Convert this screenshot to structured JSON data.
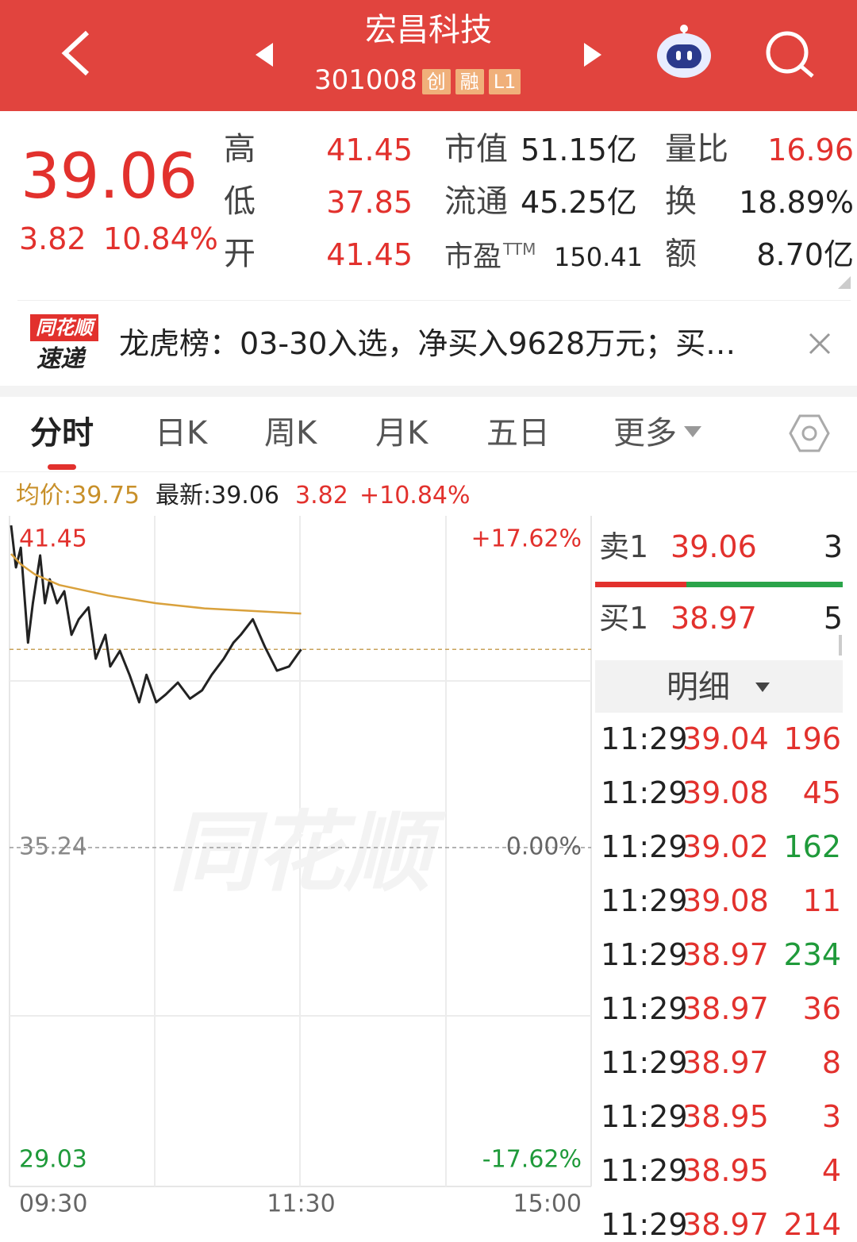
{
  "header": {
    "title": "宏昌科技",
    "code": "301008",
    "badges": [
      "创",
      "融",
      "L1"
    ]
  },
  "quote": {
    "price": "39.06",
    "change": "3.82",
    "change_pct": "10.84%",
    "stats": [
      [
        {
          "label": "高",
          "value": "41.45",
          "color": "#e2312d"
        },
        {
          "label": "市值",
          "value": "51.15亿",
          "color": "#222222"
        },
        {
          "label": "量比",
          "value": "16.96",
          "color": "#e2312d"
        }
      ],
      [
        {
          "label": "低",
          "value": "37.85",
          "color": "#e2312d"
        },
        {
          "label": "流通",
          "value": "45.25亿",
          "color": "#222222"
        },
        {
          "label": "换",
          "value": "18.89%",
          "color": "#222222"
        }
      ],
      [
        {
          "label": "开",
          "value": "41.45",
          "color": "#e2312d"
        },
        {
          "label": "市盈",
          "label_sup": "TTM",
          "value": "150.41",
          "color": "#222222"
        },
        {
          "label": "额",
          "value": "8.70亿",
          "color": "#222222"
        }
      ]
    ]
  },
  "news": {
    "logo_top": "同花顺",
    "logo_bottom": "速递",
    "text": "龙虎榜：03-30入选，净买入9628万元；买…"
  },
  "tabs": {
    "items": [
      "分时",
      "日K",
      "周K",
      "月K",
      "五日",
      "更多"
    ],
    "active": 0
  },
  "info": {
    "avg": "均价:39.75",
    "latest": "最新:39.06",
    "change": "3.82",
    "change_pct": "+10.84%"
  },
  "chart_data": {
    "type": "line",
    "watermark": "同花顺",
    "x": [
      0,
      2,
      4,
      7,
      9,
      12,
      14,
      16,
      19,
      22,
      25,
      28,
      32,
      35,
      39,
      41,
      45,
      49,
      53,
      56,
      60,
      64,
      69,
      74,
      79,
      83,
      88,
      92,
      95,
      100,
      105,
      110,
      115,
      120
    ],
    "series": [
      {
        "color": "#222222",
        "values": [
          41.45,
          40.64,
          41.02,
          39.19,
          39.95,
          40.87,
          39.95,
          40.41,
          39.95,
          40.18,
          39.34,
          39.64,
          39.87,
          38.88,
          39.34,
          38.73,
          39.03,
          38.57,
          38.04,
          38.57,
          38.04,
          38.19,
          38.42,
          38.11,
          38.27,
          38.57,
          38.88,
          39.19,
          39.34,
          39.64,
          39.11,
          38.65,
          38.73,
          39.06
        ]
      },
      {
        "color": "#d9a13c",
        "x": [
          0,
          4,
          10,
          20,
          40,
          60,
          80,
          100,
          120
        ],
        "values": [
          40.9,
          40.7,
          40.5,
          40.3,
          40.1,
          39.95,
          39.85,
          39.8,
          39.75
        ]
      }
    ],
    "xlim": [
      0,
      240
    ],
    "xticks": [
      {
        "value": 0,
        "label": "09:30"
      },
      {
        "value": 120,
        "label": "11:30"
      },
      {
        "value": 240,
        "label": "15:00"
      }
    ],
    "ylim": [
      29.03,
      41.45
    ],
    "yticks": [
      29.03,
      35.24,
      41.45
    ],
    "y2lim": [
      -17.62,
      17.62
    ],
    "y2ticks": [
      {
        "value": -17.62,
        "label": "-17.62%"
      },
      {
        "value": 0,
        "label": "0.00%"
      },
      {
        "value": 17.62,
        "label": "+17.62%"
      }
    ]
  },
  "order_book": {
    "rows": [
      {
        "label": "卖1",
        "price": "39.06",
        "volume": "3"
      },
      {
        "label": "买1",
        "price": "38.97",
        "volume": "5"
      }
    ],
    "detail_title": "明细"
  },
  "ticks": [
    {
      "time": "11:29",
      "price": "39.04",
      "volume": "196",
      "color": "#e2312d"
    },
    {
      "time": "11:29",
      "price": "39.08",
      "volume": "45",
      "color": "#e2312d"
    },
    {
      "time": "11:29",
      "price": "39.02",
      "volume": "162",
      "color": "#1f9a3a"
    },
    {
      "time": "11:29",
      "price": "39.08",
      "volume": "11",
      "color": "#e2312d"
    },
    {
      "time": "11:29",
      "price": "38.97",
      "volume": "234",
      "color": "#1f9a3a"
    },
    {
      "time": "11:29",
      "price": "38.97",
      "volume": "36",
      "color": "#e2312d"
    },
    {
      "time": "11:29",
      "price": "38.97",
      "volume": "8",
      "color": "#e2312d"
    },
    {
      "time": "11:29",
      "price": "38.95",
      "volume": "3",
      "color": "#e2312d"
    },
    {
      "time": "11:29",
      "price": "38.95",
      "volume": "4",
      "color": "#e2312d"
    },
    {
      "time": "11:29",
      "price": "38.97",
      "volume": "214",
      "color": "#e2312d"
    }
  ]
}
